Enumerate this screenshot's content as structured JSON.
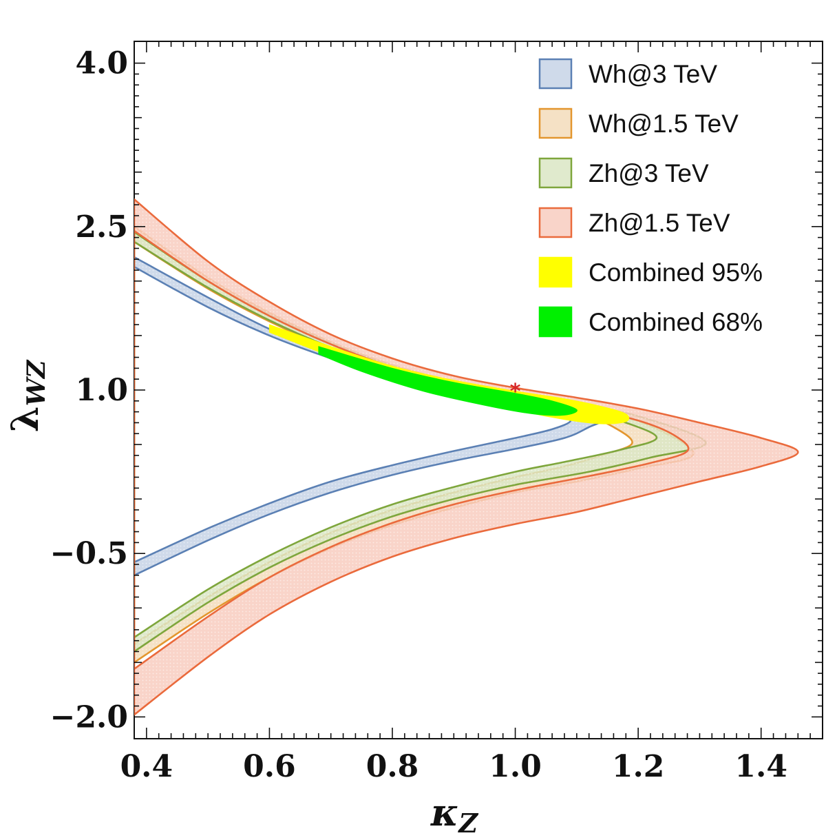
{
  "chart_data": {
    "type": "area",
    "title": "",
    "xlabel": "κ",
    "xlabel_sub": "Z",
    "ylabel": "λ",
    "ylabel_sub": "WZ",
    "xlim": [
      0.38,
      1.5
    ],
    "ylim": [
      -2.2,
      4.2
    ],
    "x_ticks": [
      0.4,
      0.6,
      0.8,
      1.0,
      1.2,
      1.4
    ],
    "x_tick_labels": [
      "0.4",
      "0.6",
      "0.8",
      "1.0",
      "1.2",
      "1.4"
    ],
    "y_ticks": [
      -2.0,
      -0.5,
      1.0,
      2.5,
      4.0
    ],
    "y_tick_labels": [
      "−2.0",
      "−0.5",
      "1.0",
      "2.5",
      "4.0"
    ],
    "grid": false,
    "legend_position": "top-right",
    "reference_point": {
      "x": 1.0,
      "y": 1.0,
      "marker": "*",
      "color": "#d62728"
    },
    "series": [
      {
        "name": "Wh@3 TeV",
        "fill": "#c7d4e6",
        "stroke": "#5b80b4",
        "tip_x": 1.16,
        "tip_y": 0.78,
        "upper_outer": [
          [
            0.38,
            2.22
          ],
          [
            0.5,
            1.85
          ],
          [
            0.6,
            1.56
          ],
          [
            0.7,
            1.34
          ],
          [
            0.8,
            1.16
          ],
          [
            0.9,
            1.03
          ],
          [
            1.0,
            0.93
          ],
          [
            1.08,
            0.85
          ],
          [
            1.16,
            0.78
          ]
        ],
        "lower_outer": [
          [
            1.16,
            0.78
          ],
          [
            1.12,
            0.66
          ],
          [
            1.08,
            0.56
          ],
          [
            1.0,
            0.46
          ],
          [
            0.9,
            0.35
          ],
          [
            0.8,
            0.22
          ],
          [
            0.7,
            0.06
          ],
          [
            0.6,
            -0.14
          ],
          [
            0.5,
            -0.38
          ],
          [
            0.38,
            -0.7
          ]
        ],
        "upper_inner": [
          [
            0.38,
            2.13
          ],
          [
            0.5,
            1.76
          ],
          [
            0.6,
            1.5
          ],
          [
            0.7,
            1.29
          ],
          [
            0.8,
            1.11
          ],
          [
            0.9,
            0.97
          ],
          [
            1.0,
            0.85
          ],
          [
            1.06,
            0.78
          ],
          [
            1.09,
            0.72
          ]
        ],
        "lower_inner": [
          [
            1.09,
            0.72
          ],
          [
            1.06,
            0.64
          ],
          [
            1.0,
            0.56
          ],
          [
            0.9,
            0.44
          ],
          [
            0.8,
            0.31
          ],
          [
            0.7,
            0.16
          ],
          [
            0.6,
            -0.04
          ],
          [
            0.5,
            -0.27
          ],
          [
            0.38,
            -0.58
          ]
        ]
      },
      {
        "name": "Wh@1.5 TeV",
        "fill": "#f3dcbb",
        "stroke": "#e3962e",
        "tip_x": 1.29,
        "tip_y": 0.42,
        "upper_outer": [
          [
            0.38,
            2.5
          ],
          [
            0.5,
            2.03
          ],
          [
            0.6,
            1.71
          ],
          [
            0.7,
            1.44
          ],
          [
            0.8,
            1.23
          ],
          [
            0.9,
            1.08
          ],
          [
            1.0,
            0.98
          ],
          [
            1.1,
            0.88
          ],
          [
            1.2,
            0.72
          ],
          [
            1.29,
            0.42
          ]
        ],
        "lower_outer": [
          [
            1.29,
            0.42
          ],
          [
            1.2,
            0.28
          ],
          [
            1.1,
            0.16
          ],
          [
            1.0,
            0.06
          ],
          [
            0.9,
            -0.08
          ],
          [
            0.8,
            -0.24
          ],
          [
            0.7,
            -0.45
          ],
          [
            0.6,
            -0.72
          ],
          [
            0.5,
            -1.05
          ],
          [
            0.38,
            -1.5
          ]
        ],
        "upper_inner": [
          [
            0.38,
            2.36
          ],
          [
            0.5,
            1.93
          ],
          [
            0.6,
            1.63
          ],
          [
            0.7,
            1.38
          ],
          [
            0.8,
            1.18
          ],
          [
            0.9,
            1.03
          ],
          [
            1.0,
            0.92
          ],
          [
            1.1,
            0.8
          ],
          [
            1.16,
            0.66
          ],
          [
            1.19,
            0.51
          ]
        ],
        "lower_inner": [
          [
            1.19,
            0.51
          ],
          [
            1.14,
            0.4
          ],
          [
            1.08,
            0.3
          ],
          [
            1.0,
            0.2
          ],
          [
            0.9,
            0.06
          ],
          [
            0.8,
            -0.1
          ],
          [
            0.7,
            -0.31
          ],
          [
            0.6,
            -0.58
          ],
          [
            0.5,
            -0.9
          ],
          [
            0.38,
            -1.33
          ]
        ]
      },
      {
        "name": "Zh@3 TeV",
        "fill": "#dbe6c4",
        "stroke": "#7ea63c",
        "tip_x": 1.31,
        "tip_y": 0.52,
        "upper_outer": [
          [
            0.38,
            2.45
          ],
          [
            0.5,
            2.0
          ],
          [
            0.6,
            1.69
          ],
          [
            0.7,
            1.43
          ],
          [
            0.8,
            1.22
          ],
          [
            0.9,
            1.07
          ],
          [
            1.0,
            0.97
          ],
          [
            1.1,
            0.87
          ],
          [
            1.2,
            0.76
          ],
          [
            1.31,
            0.52
          ]
        ],
        "lower_outer": [
          [
            1.31,
            0.52
          ],
          [
            1.22,
            0.38
          ],
          [
            1.12,
            0.25
          ],
          [
            1.0,
            0.13
          ],
          [
            0.9,
            0.0
          ],
          [
            0.8,
            -0.16
          ],
          [
            0.7,
            -0.37
          ],
          [
            0.6,
            -0.63
          ],
          [
            0.5,
            -0.95
          ],
          [
            0.38,
            -1.4
          ]
        ],
        "upper_inner": [
          [
            0.38,
            2.36
          ],
          [
            0.5,
            1.94
          ],
          [
            0.6,
            1.64
          ],
          [
            0.7,
            1.39
          ],
          [
            0.8,
            1.19
          ],
          [
            0.9,
            1.04
          ],
          [
            1.0,
            0.93
          ],
          [
            1.1,
            0.82
          ],
          [
            1.18,
            0.7
          ],
          [
            1.23,
            0.56
          ]
        ],
        "lower_inner": [
          [
            1.23,
            0.56
          ],
          [
            1.17,
            0.45
          ],
          [
            1.08,
            0.34
          ],
          [
            1.0,
            0.25
          ],
          [
            0.9,
            0.11
          ],
          [
            0.8,
            -0.05
          ],
          [
            0.7,
            -0.26
          ],
          [
            0.6,
            -0.52
          ],
          [
            0.5,
            -0.83
          ],
          [
            0.38,
            -1.27
          ]
        ]
      },
      {
        "name": "Zh@1.5 TeV",
        "fill": "#f8ccc0",
        "stroke": "#ea6a3c",
        "tip_x": 1.46,
        "tip_y": 0.43,
        "upper_outer": [
          [
            0.38,
            2.75
          ],
          [
            0.5,
            2.18
          ],
          [
            0.6,
            1.81
          ],
          [
            0.7,
            1.51
          ],
          [
            0.8,
            1.29
          ],
          [
            0.9,
            1.13
          ],
          [
            1.0,
            1.02
          ],
          [
            1.1,
            0.93
          ],
          [
            1.2,
            0.83
          ],
          [
            1.3,
            0.7
          ],
          [
            1.4,
            0.56
          ],
          [
            1.46,
            0.43
          ]
        ],
        "lower_outer": [
          [
            1.46,
            0.43
          ],
          [
            1.4,
            0.3
          ],
          [
            1.3,
            0.16
          ],
          [
            1.2,
            0.02
          ],
          [
            1.1,
            -0.12
          ],
          [
            1.0,
            -0.23
          ],
          [
            0.9,
            -0.36
          ],
          [
            0.8,
            -0.53
          ],
          [
            0.7,
            -0.76
          ],
          [
            0.6,
            -1.06
          ],
          [
            0.5,
            -1.45
          ],
          [
            0.38,
            -1.98
          ]
        ],
        "upper_inner": [
          [
            0.38,
            2.46
          ],
          [
            0.5,
            2.0
          ],
          [
            0.6,
            1.68
          ],
          [
            0.7,
            1.42
          ],
          [
            0.8,
            1.21
          ],
          [
            0.9,
            1.06
          ],
          [
            1.0,
            0.95
          ],
          [
            1.1,
            0.85
          ],
          [
            1.2,
            0.72
          ],
          [
            1.26,
            0.58
          ],
          [
            1.28,
            0.44
          ]
        ],
        "lower_inner": [
          [
            1.28,
            0.44
          ],
          [
            1.22,
            0.33
          ],
          [
            1.12,
            0.21
          ],
          [
            1.0,
            0.08
          ],
          [
            0.9,
            -0.05
          ],
          [
            0.8,
            -0.22
          ],
          [
            0.7,
            -0.44
          ],
          [
            0.6,
            -0.72
          ],
          [
            0.5,
            -1.08
          ],
          [
            0.38,
            -1.56
          ]
        ]
      },
      {
        "name": "Combined 95%",
        "fill": "#ffff00",
        "stroke": "#ffff00",
        "polygon": [
          [
            0.6,
            1.6
          ],
          [
            0.7,
            1.4
          ],
          [
            0.8,
            1.22
          ],
          [
            0.9,
            1.09
          ],
          [
            1.0,
            0.99
          ],
          [
            1.08,
            0.92
          ],
          [
            1.14,
            0.85
          ],
          [
            1.18,
            0.78
          ],
          [
            1.18,
            0.71
          ],
          [
            1.14,
            0.69
          ],
          [
            1.08,
            0.73
          ],
          [
            1.0,
            0.82
          ],
          [
            0.9,
            0.97
          ],
          [
            0.8,
            1.12
          ],
          [
            0.7,
            1.31
          ],
          [
            0.6,
            1.53
          ]
        ]
      },
      {
        "name": "Combined 68%",
        "fill": "#00f000",
        "stroke": "#00f000",
        "polygon": [
          [
            0.68,
            1.4
          ],
          [
            0.8,
            1.2
          ],
          [
            0.9,
            1.07
          ],
          [
            1.0,
            0.97
          ],
          [
            1.06,
            0.9
          ],
          [
            1.1,
            0.82
          ],
          [
            1.08,
            0.77
          ],
          [
            1.03,
            0.78
          ],
          [
            0.95,
            0.86
          ],
          [
            0.85,
            0.99
          ],
          [
            0.75,
            1.17
          ],
          [
            0.68,
            1.33
          ]
        ]
      }
    ]
  }
}
